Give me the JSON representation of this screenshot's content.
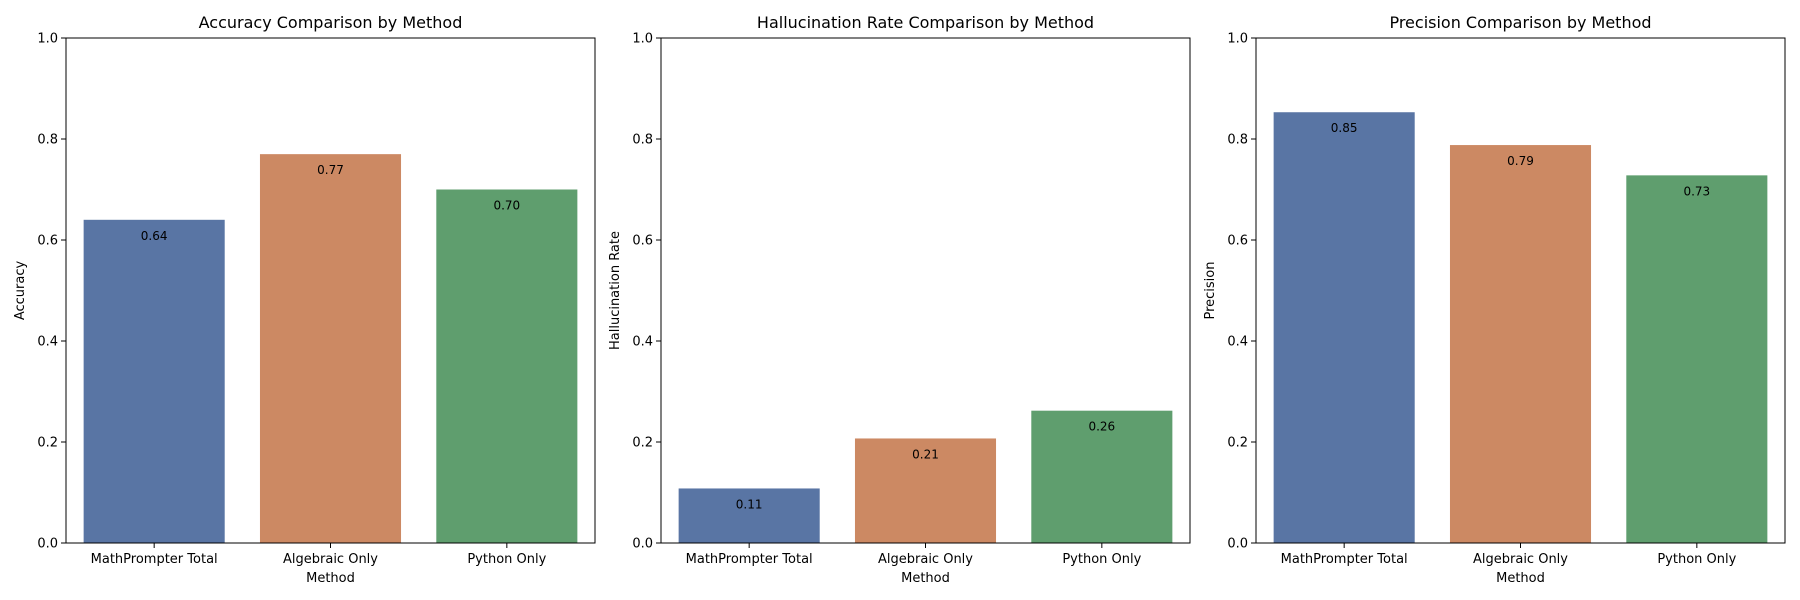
{
  "chart_data": [
    {
      "type": "bar",
      "title": "Accuracy Comparison by Method",
      "xlabel": "Method",
      "ylabel": "Accuracy",
      "categories": [
        "MathPrompter Total",
        "Algebraic Only",
        "Python Only"
      ],
      "values": [
        0.64,
        0.77,
        0.7
      ],
      "value_labels": [
        "0.64",
        "0.77",
        "0.70"
      ],
      "ylim": [
        0,
        1
      ],
      "yticks": [
        "0.0",
        "0.2",
        "0.4",
        "0.6",
        "0.8",
        "1.0"
      ],
      "colors": [
        "#5975a4",
        "#cc8963",
        "#5f9e6e"
      ],
      "grid": false
    },
    {
      "type": "bar",
      "title": "Hallucination Rate Comparison by Method",
      "xlabel": "Method",
      "ylabel": "Hallucination Rate",
      "categories": [
        "MathPrompter Total",
        "Algebraic Only",
        "Python Only"
      ],
      "values": [
        0.108,
        0.207,
        0.262
      ],
      "value_labels": [
        "0.11",
        "0.21",
        "0.26"
      ],
      "ylim": [
        0,
        1
      ],
      "yticks": [
        "0.0",
        "0.2",
        "0.4",
        "0.6",
        "0.8",
        "1.0"
      ],
      "colors": [
        "#5975a4",
        "#cc8963",
        "#5f9e6e"
      ],
      "grid": false
    },
    {
      "type": "bar",
      "title": "Precision Comparison by Method",
      "xlabel": "Method",
      "ylabel": "Precision",
      "categories": [
        "MathPrompter Total",
        "Algebraic Only",
        "Python Only"
      ],
      "values": [
        0.853,
        0.788,
        0.728
      ],
      "value_labels": [
        "0.85",
        "0.79",
        "0.73"
      ],
      "ylim": [
        0,
        1
      ],
      "yticks": [
        "0.0",
        "0.2",
        "0.4",
        "0.6",
        "0.8",
        "1.0"
      ],
      "colors": [
        "#5975a4",
        "#cc8963",
        "#5f9e6e"
      ],
      "grid": false
    }
  ]
}
